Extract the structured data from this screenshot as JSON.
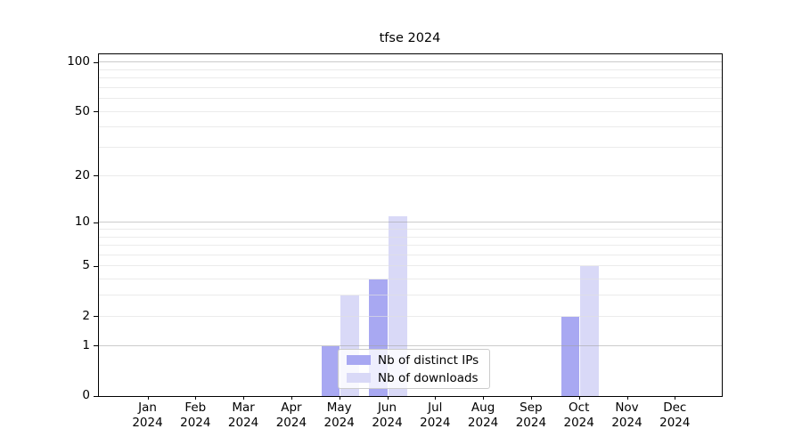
{
  "chart_data": {
    "type": "bar",
    "title": "tfse 2024",
    "categories": [
      "Jan 2024",
      "Feb 2024",
      "Mar 2024",
      "Apr 2024",
      "May 2024",
      "Jun 2024",
      "Jul 2024",
      "Aug 2024",
      "Sep 2024",
      "Oct 2024",
      "Nov 2024",
      "Dec 2024"
    ],
    "series": [
      {
        "name": "Nb of distinct IPs",
        "color": "#a8a8f2",
        "values": [
          0,
          0,
          0,
          0,
          1,
          4,
          0,
          0,
          0,
          2,
          0,
          0
        ]
      },
      {
        "name": "Nb of downloads",
        "color": "#d9d9f7",
        "values": [
          0,
          0,
          0,
          0,
          3,
          11,
          0,
          0,
          0,
          5,
          0,
          0
        ]
      }
    ],
    "xlabel": "",
    "ylabel": "",
    "y_scale": "log1p",
    "ylim": [
      0,
      112
    ],
    "y_major_ticks": [
      0,
      1,
      2,
      5,
      10,
      20,
      50,
      100
    ],
    "y_minor_ticks": [
      3,
      4,
      6,
      7,
      8,
      9,
      30,
      40,
      60,
      70,
      80,
      90
    ],
    "y_decade_lines": [
      1,
      10,
      100
    ],
    "grid": "on",
    "legend_position": "lower center",
    "axis_color": "#000000",
    "grid_major_color": "#c8c8c8",
    "grid_minor_color": "#ececec"
  }
}
